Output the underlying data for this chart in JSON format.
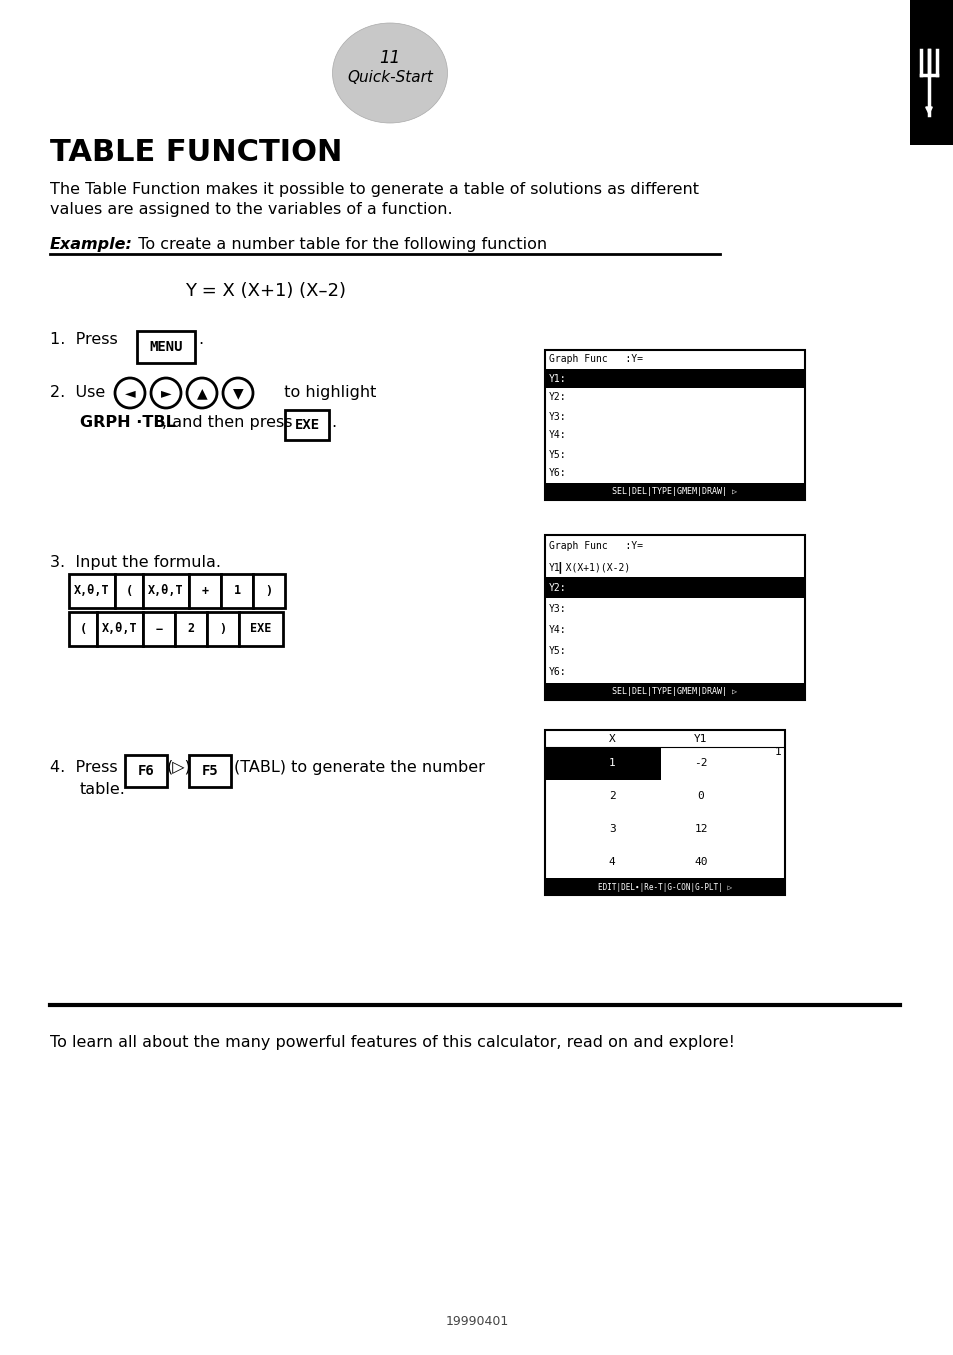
{
  "page_number": "11",
  "page_subtitle": "Quick-Start",
  "title": "TABLE FUNCTION",
  "intro_line1": "The Table Function makes it possible to generate a table of solutions as different",
  "intro_line2": "values are assigned to the variables of a function.",
  "example_label": "Example:",
  "example_text": "  To create a number table for the following function",
  "formula": "Y = X (X+1) (X–2)",
  "step1_text": "1.  Press",
  "step1_key": "MENU",
  "step2_text": "2.  Use",
  "step2_highlight": "GRPH ·TBL",
  "step2_mid": "to highlight",
  "step2_then": ", and then press",
  "step2_key": "EXE",
  "step3_text": "3.  Input the formula.",
  "step4_text": "4.  Press",
  "step4_key1": "F6",
  "step4_mid": "(▷)",
  "step4_key2": "F5",
  "step4_end": "(TABL) to generate the number",
  "step4_end2": "table.",
  "footer_line": "To learn all about the many powerful features of this calculator, read on and explore!",
  "footer_num": "19990401",
  "sc1_lines": [
    "Graph Func   :Y=",
    "Y1:",
    "Y2:",
    "Y3:",
    "Y4:",
    "Y5:",
    "Y6:"
  ],
  "sc1_hl": 1,
  "sc1_bar": "SEL|DEL|TYPE|GMEM|DRAW| ▷",
  "sc2_lines": [
    "Graph Func   :Y=",
    "Y1▎X(X+1)(X-2)",
    "Y2:",
    "Y3:",
    "Y4:",
    "Y5:",
    "Y6:"
  ],
  "sc2_hl": 2,
  "sc2_bar": "SEL|DEL|TYPE|GMEM|DRAW| ▷",
  "sc3_rows": [
    [
      "1",
      "-2"
    ],
    [
      "2",
      "0"
    ],
    [
      "3",
      "12"
    ],
    [
      "4",
      "40"
    ]
  ],
  "sc3_hl": 0,
  "sc3_bar": "EDIT|DEL∙|Re-T|G-CON|G-PLT| ▷",
  "keys_row1": [
    [
      "X,θ,T",
      40
    ],
    [
      "(",
      22
    ],
    [
      "X,θ,T",
      40
    ],
    [
      "+",
      26
    ],
    [
      "1",
      26
    ],
    [
      ")",
      26
    ]
  ],
  "keys_row2": [
    [
      "(",
      22
    ],
    [
      "X,θ,T",
      40
    ],
    [
      "−",
      26
    ],
    [
      "2",
      26
    ],
    [
      ")",
      26
    ],
    [
      "EXE",
      38
    ]
  ]
}
